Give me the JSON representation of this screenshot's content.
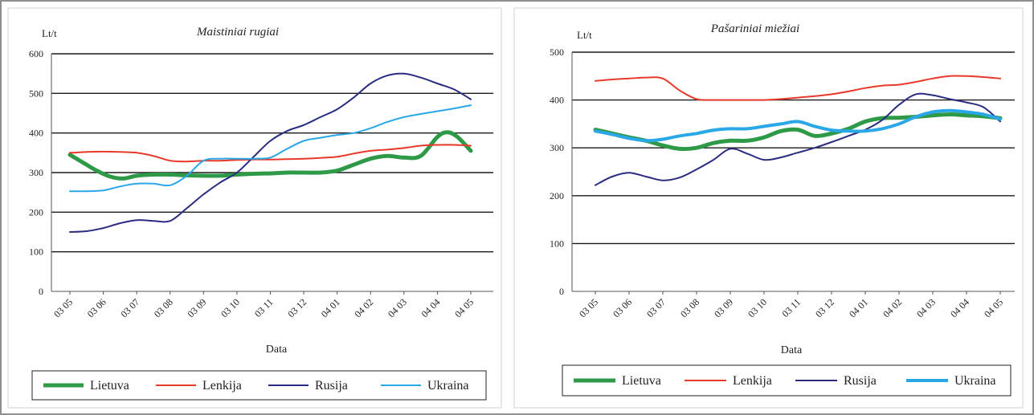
{
  "chart_data": [
    {
      "type": "line",
      "title": "Maistiniai rugiai",
      "ylabel": "Lt/t",
      "xlabel": "Data",
      "ylim": [
        0,
        600
      ],
      "yticks": [
        0,
        100,
        200,
        300,
        400,
        500,
        600
      ],
      "grid": "horizontal",
      "legend_position": "bottom",
      "categories": [
        "03 05",
        "03 06",
        "03 07",
        "03 08",
        "03 09",
        "03 10",
        "03 11",
        "03 12",
        "04 01",
        "04 02",
        "04 03",
        "04 04",
        "04 05"
      ],
      "series": [
        {
          "name": "Lietuva",
          "color": "#2e9a47",
          "width": 5,
          "x": [
            0,
            0.4,
            0.8,
            1.2,
            1.6,
            2,
            2.5,
            3,
            3.5,
            4,
            4.5,
            5,
            5.5,
            6,
            6.5,
            7,
            7.5,
            8,
            8.5,
            9,
            9.5,
            10,
            10.5,
            11,
            11.3,
            11.6,
            12
          ],
          "values": [
            345,
            325,
            305,
            290,
            285,
            292,
            295,
            295,
            293,
            292,
            292,
            295,
            297,
            298,
            300,
            300,
            300,
            305,
            320,
            335,
            342,
            338,
            342,
            390,
            402,
            390,
            355
          ]
        },
        {
          "name": "Lenkija",
          "color": "#e8382a",
          "width": 2,
          "x": [
            0,
            0.5,
            1,
            1.5,
            2,
            2.5,
            3,
            3.5,
            4,
            4.5,
            5,
            5.5,
            6,
            6.5,
            7,
            7.5,
            8,
            8.5,
            9,
            9.5,
            10,
            10.5,
            11,
            11.5,
            12
          ],
          "values": [
            350,
            352,
            353,
            352,
            350,
            342,
            330,
            328,
            330,
            330,
            332,
            333,
            333,
            334,
            335,
            337,
            340,
            348,
            355,
            358,
            362,
            368,
            370,
            370,
            368
          ]
        },
        {
          "name": "Rusija",
          "color": "#2a2c80",
          "width": 2,
          "x": [
            0,
            0.5,
            1,
            1.5,
            2,
            2.5,
            3,
            3.5,
            4,
            4.5,
            5,
            5.5,
            6,
            6.5,
            7,
            7.5,
            8,
            8.5,
            9,
            9.5,
            10,
            10.5,
            11,
            11.5,
            12
          ],
          "values": [
            150,
            152,
            160,
            172,
            180,
            178,
            178,
            210,
            245,
            275,
            300,
            340,
            380,
            405,
            420,
            440,
            460,
            490,
            525,
            545,
            550,
            540,
            525,
            510,
            485
          ]
        },
        {
          "name": "Ukraina",
          "color": "#2aa7e6",
          "width": 2,
          "x": [
            0,
            0.5,
            1,
            1.5,
            2,
            2.5,
            3,
            3.5,
            4,
            4.5,
            5,
            5.5,
            6,
            6.5,
            7,
            7.5,
            8,
            8.5,
            9,
            9.5,
            10,
            10.5,
            11,
            11.5,
            12
          ],
          "values": [
            253,
            253,
            255,
            265,
            272,
            272,
            268,
            292,
            330,
            335,
            335,
            335,
            338,
            360,
            380,
            388,
            395,
            400,
            412,
            428,
            440,
            448,
            455,
            462,
            470
          ]
        }
      ]
    },
    {
      "type": "line",
      "title": "Pašariniai miežiai",
      "ylabel": "Lt/t",
      "xlabel": "Data",
      "ylim": [
        0,
        500
      ],
      "yticks": [
        0,
        100,
        200,
        300,
        400,
        500
      ],
      "grid": "horizontal",
      "legend_position": "bottom",
      "categories": [
        "03 05",
        "03 06",
        "03 07",
        "03 08",
        "03 09",
        "03 10",
        "03 11",
        "03 12",
        "04 01",
        "04 02",
        "04 03",
        "04 04",
        "04 05"
      ],
      "series": [
        {
          "name": "Lietuva",
          "color": "#2e9a47",
          "width": 5,
          "x": [
            0,
            0.5,
            1,
            1.5,
            2,
            2.5,
            3,
            3.5,
            4,
            4.5,
            5,
            5.5,
            6,
            6.5,
            7,
            7.5,
            8,
            8.5,
            9,
            9.5,
            10,
            10.5,
            11,
            11.5,
            12
          ],
          "values": [
            338,
            330,
            322,
            315,
            305,
            298,
            300,
            310,
            315,
            315,
            322,
            335,
            338,
            325,
            330,
            340,
            355,
            362,
            363,
            365,
            368,
            370,
            368,
            366,
            362
          ]
        },
        {
          "name": "Lenkija",
          "color": "#e8382a",
          "width": 2,
          "x": [
            0,
            0.5,
            1,
            1.5,
            2,
            2.5,
            3,
            3.5,
            4,
            4.5,
            5,
            5.5,
            6,
            6.5,
            7,
            7.5,
            8,
            8.5,
            9,
            9.5,
            10,
            10.5,
            11,
            11.5,
            12
          ],
          "values": [
            440,
            443,
            445,
            447,
            445,
            420,
            402,
            400,
            400,
            400,
            400,
            402,
            405,
            408,
            412,
            418,
            425,
            430,
            432,
            438,
            445,
            450,
            450,
            448,
            445
          ]
        },
        {
          "name": "Rusija",
          "color": "#2a2c80",
          "width": 2,
          "x": [
            0,
            0.5,
            1,
            1.5,
            2,
            2.5,
            3,
            3.5,
            4,
            4.5,
            5,
            5.5,
            6,
            6.5,
            7,
            7.5,
            8,
            8.5,
            9,
            9.5,
            10,
            10.5,
            11,
            11.5,
            12
          ],
          "values": [
            222,
            240,
            248,
            240,
            232,
            238,
            255,
            275,
            298,
            288,
            275,
            280,
            290,
            300,
            312,
            325,
            338,
            358,
            390,
            412,
            410,
            402,
            395,
            385,
            355
          ]
        },
        {
          "name": "Ukraina",
          "color": "#2aa7e6",
          "width": 4,
          "x": [
            0,
            0.5,
            1,
            1.5,
            2,
            2.5,
            3,
            3.5,
            4,
            4.5,
            5,
            5.5,
            6,
            6.5,
            7,
            7.5,
            8,
            8.5,
            9,
            9.5,
            10,
            10.5,
            11,
            11.5,
            12
          ],
          "values": [
            335,
            328,
            320,
            315,
            318,
            325,
            330,
            337,
            340,
            340,
            345,
            350,
            355,
            345,
            337,
            335,
            335,
            340,
            350,
            365,
            375,
            378,
            375,
            370,
            360
          ]
        }
      ]
    }
  ]
}
